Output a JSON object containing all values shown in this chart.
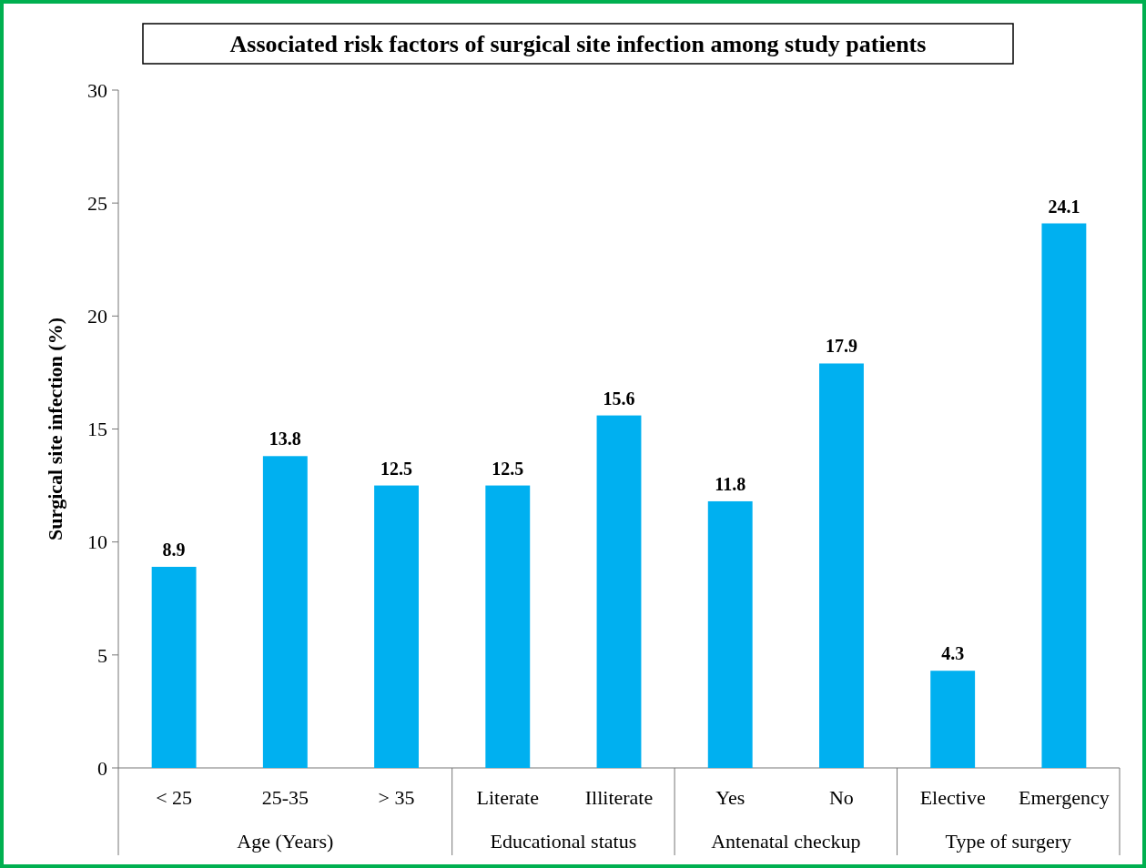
{
  "chart_data": {
    "type": "bar",
    "title": "Associated risk factors of surgical site infection among study patients",
    "ylabel": "Surgical site infection (%)",
    "categories": [
      "< 25",
      "25-35",
      "> 35",
      "Literate",
      "Illiterate",
      "Yes",
      "No",
      "Elective",
      "Emergency"
    ],
    "values": [
      8.9,
      13.8,
      12.5,
      12.5,
      15.6,
      11.8,
      17.9,
      4.3,
      24.1
    ],
    "color": "#00b0f0",
    "ylim": [
      0,
      30
    ],
    "yticks": [
      0,
      5,
      10,
      15,
      20,
      25,
      30
    ],
    "data_labels": true,
    "annotations": [
      "Age (Years)",
      "Educational status",
      "Antenatal checkup",
      "Type of surgery"
    ]
  }
}
